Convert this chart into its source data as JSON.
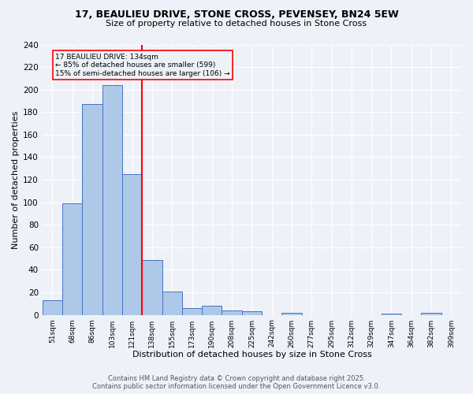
{
  "title_line1": "17, BEAULIEU DRIVE, STONE CROSS, PEVENSEY, BN24 5EW",
  "title_line2": "Size of property relative to detached houses in Stone Cross",
  "categories": [
    "51sqm",
    "68sqm",
    "86sqm",
    "103sqm",
    "121sqm",
    "138sqm",
    "155sqm",
    "173sqm",
    "190sqm",
    "208sqm",
    "225sqm",
    "242sqm",
    "260sqm",
    "277sqm",
    "295sqm",
    "312sqm",
    "329sqm",
    "347sqm",
    "364sqm",
    "382sqm",
    "399sqm"
  ],
  "values": [
    13,
    99,
    187,
    204,
    125,
    49,
    21,
    6,
    8,
    4,
    3,
    0,
    2,
    0,
    0,
    0,
    0,
    1,
    0,
    2,
    0
  ],
  "bar_color": "#aec9e8",
  "bar_edge_color": "#4472c4",
  "red_line_x": 4.5,
  "annotation_text": "17 BEAULIEU DRIVE: 134sqm\n← 85% of detached houses are smaller (599)\n15% of semi-detached houses are larger (106) →",
  "xlabel": "Distribution of detached houses by size in Stone Cross",
  "ylabel": "Number of detached properties",
  "ylim": [
    0,
    240
  ],
  "yticks": [
    0,
    20,
    40,
    60,
    80,
    100,
    120,
    140,
    160,
    180,
    200,
    220,
    240
  ],
  "footer_line1": "Contains HM Land Registry data © Crown copyright and database right 2025.",
  "footer_line2": "Contains public sector information licensed under the Open Government Licence v3.0.",
  "bg_color": "#eef2f8",
  "grid_color": "#ffffff"
}
